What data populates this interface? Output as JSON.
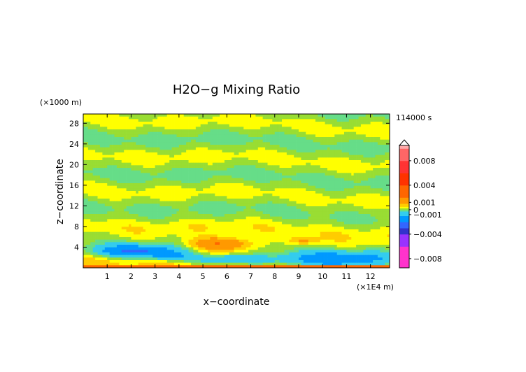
{
  "chart_data": {
    "type": "heatmap",
    "title": "H2O−g Mixing Ratio",
    "xlabel": "x−coordinate",
    "ylabel": "z−coordinate",
    "x_unit": "(×1E4 m)",
    "y_unit": "(×1000 m)",
    "time_label": "114000 s",
    "xlim": [
      0,
      12.8
    ],
    "ylim": [
      0,
      29.8
    ],
    "x_ticks": [
      "1",
      "2",
      "3",
      "4",
      "5",
      "6",
      "7",
      "8",
      "9",
      "10",
      "11",
      "12"
    ],
    "y_ticks": [
      "4",
      "8",
      "12",
      "16",
      "20",
      "24",
      "28"
    ],
    "colorbar": {
      "range": [
        -0.0095,
        0.0105
      ],
      "labels": [
        {
          "text": "0.008",
          "value": 0.008
        },
        {
          "text": "0.004",
          "value": 0.004
        },
        {
          "text": "0.001",
          "value": 0.0012
        },
        {
          "text": "0",
          "value": 0.0
        },
        {
          "text": "−0.001",
          "value": -0.0008
        },
        {
          "text": "−0.004",
          "value": -0.004
        },
        {
          "text": "−0.008",
          "value": -0.008
        }
      ]
    },
    "value_bands": [
      {
        "level": -0.008,
        "color": "#ff33cc"
      },
      {
        "level": -0.006,
        "color": "#9933ff"
      },
      {
        "level": -0.004,
        "color": "#3333cc"
      },
      {
        "level": -0.003,
        "color": "#3366ff"
      },
      {
        "level": -0.002,
        "color": "#0099ff"
      },
      {
        "level": -0.001,
        "color": "#33ccee"
      },
      {
        "level": -0.0003,
        "color": "#66dd88"
      },
      {
        "level": 0.0,
        "color": "#99dd33"
      },
      {
        "level": 0.0003,
        "color": "#ffff00"
      },
      {
        "level": 0.0006,
        "color": "#ffcc00"
      },
      {
        "level": 0.001,
        "color": "#ff9900"
      },
      {
        "level": 0.002,
        "color": "#ff6600"
      },
      {
        "level": 0.004,
        "color": "#ff3300"
      },
      {
        "level": 0.006,
        "color": "#ff3333"
      },
      {
        "level": 0.008,
        "color": "#ff6666"
      },
      {
        "level": 0.01,
        "color": "#ffaaaa"
      }
    ],
    "regions": [
      {
        "zone": "lower troposphere (z ≈ 0–3)",
        "dominant": "negative (-0.001 to -0.003)"
      },
      {
        "zone": "mid-level blob (x ≈ 4.5–7, z ≈ 4–6)",
        "dominant": "positive (0.001 to 0.002)"
      },
      {
        "zone": "upper layers (z ≈ 8–30)",
        "dominant": "alternating 0 / +0.0003 bands"
      }
    ]
  }
}
